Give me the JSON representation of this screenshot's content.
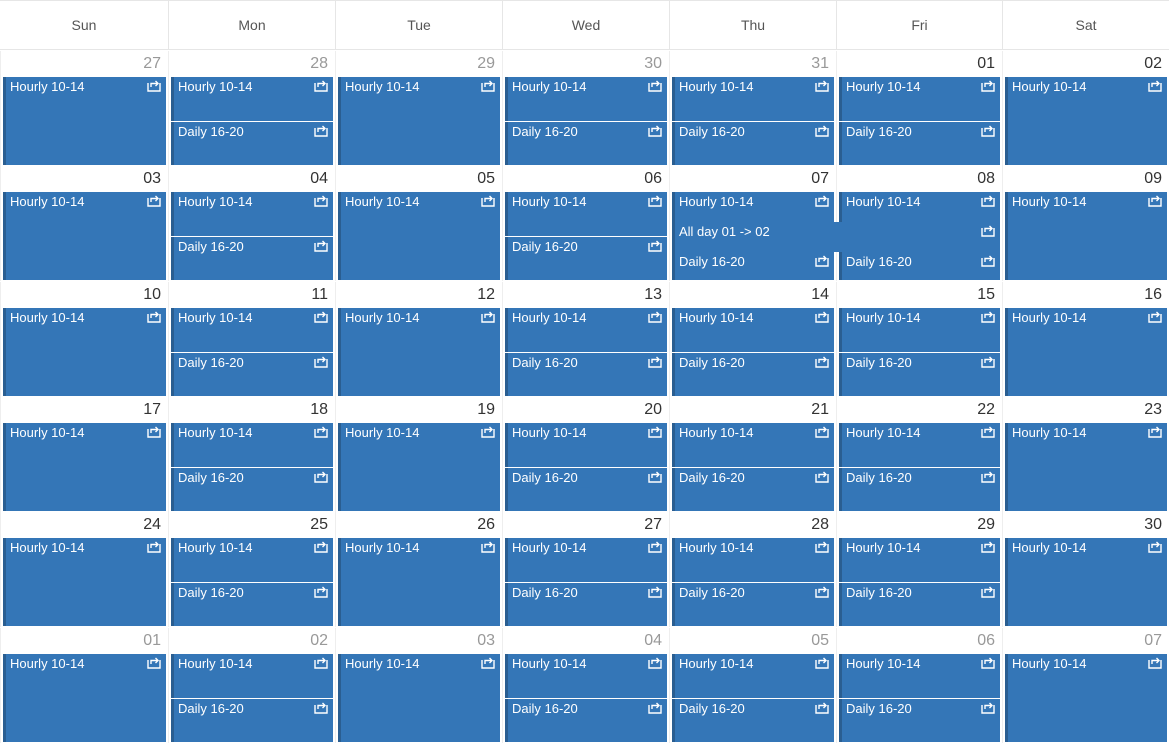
{
  "colors": {
    "event_bg": "#3476b7",
    "event_border": "#2a5e91",
    "event_text": "#ffffff",
    "grid_line": "#e6e6e6"
  },
  "icon": "recurring-event-icon",
  "days_of_week": [
    "Sun",
    "Mon",
    "Tue",
    "Wed",
    "Thu",
    "Fri",
    "Sat"
  ],
  "weeks": [
    {
      "days": [
        {
          "num": "27",
          "other": true
        },
        {
          "num": "28",
          "other": true
        },
        {
          "num": "29",
          "other": true
        },
        {
          "num": "30",
          "other": true
        },
        {
          "num": "31",
          "other": true
        },
        {
          "num": "01",
          "other": false
        },
        {
          "num": "02",
          "other": false
        }
      ],
      "events": [
        {
          "label": "Hourly 10-14",
          "col": 0,
          "span": 1,
          "slot": 0
        },
        {
          "label": "Hourly 10-14",
          "col": 1,
          "span": 1,
          "slot": 0
        },
        {
          "label": "Daily 16-20",
          "col": 1,
          "span": 1,
          "slot": 1
        },
        {
          "label": "Hourly 10-14",
          "col": 2,
          "span": 1,
          "slot": 0
        },
        {
          "label": "Hourly 10-14",
          "col": 3,
          "span": 1,
          "slot": 0
        },
        {
          "label": "Daily 16-20",
          "col": 3,
          "span": 1,
          "slot": 1
        },
        {
          "label": "Hourly 10-14",
          "col": 4,
          "span": 1,
          "slot": 0
        },
        {
          "label": "Daily 16-20",
          "col": 4,
          "span": 1,
          "slot": 1
        },
        {
          "label": "Hourly 10-14",
          "col": 5,
          "span": 1,
          "slot": 0
        },
        {
          "label": "Daily 16-20",
          "col": 5,
          "span": 1,
          "slot": 1
        },
        {
          "label": "Hourly 10-14",
          "col": 6,
          "span": 1,
          "slot": 0
        }
      ]
    },
    {
      "days": [
        {
          "num": "03",
          "other": false
        },
        {
          "num": "04",
          "other": false
        },
        {
          "num": "05",
          "other": false
        },
        {
          "num": "06",
          "other": false
        },
        {
          "num": "07",
          "other": false
        },
        {
          "num": "08",
          "other": false
        },
        {
          "num": "09",
          "other": false
        }
      ],
      "events": [
        {
          "label": "Hourly 10-14",
          "col": 0,
          "span": 1,
          "slot": 0
        },
        {
          "label": "Hourly 10-14",
          "col": 1,
          "span": 1,
          "slot": 0
        },
        {
          "label": "Daily 16-20",
          "col": 1,
          "span": 1,
          "slot": 1
        },
        {
          "label": "Hourly 10-14",
          "col": 2,
          "span": 1,
          "slot": 0
        },
        {
          "label": "Hourly 10-14",
          "col": 3,
          "span": 1,
          "slot": 0
        },
        {
          "label": "Daily 16-20",
          "col": 3,
          "span": 1,
          "slot": 1
        },
        {
          "label": "Hourly 10-14",
          "col": 4,
          "span": 1,
          "slot": 0
        },
        {
          "label": "All day 01 -> 02",
          "col": 4,
          "span": 2,
          "slot": 2
        },
        {
          "label": "Daily 16-20",
          "col": 4,
          "span": 1,
          "slot": 3
        },
        {
          "label": "Hourly 10-14",
          "col": 5,
          "span": 1,
          "slot": 0
        },
        {
          "label": "Daily 16-20",
          "col": 5,
          "span": 1,
          "slot": 3
        },
        {
          "label": "Hourly 10-14",
          "col": 6,
          "span": 1,
          "slot": 0
        }
      ]
    },
    {
      "days": [
        {
          "num": "10",
          "other": false
        },
        {
          "num": "11",
          "other": false
        },
        {
          "num": "12",
          "other": false
        },
        {
          "num": "13",
          "other": false
        },
        {
          "num": "14",
          "other": false
        },
        {
          "num": "15",
          "other": false
        },
        {
          "num": "16",
          "other": false
        }
      ],
      "events": [
        {
          "label": "Hourly 10-14",
          "col": 0,
          "span": 1,
          "slot": 0
        },
        {
          "label": "Hourly 10-14",
          "col": 1,
          "span": 1,
          "slot": 0
        },
        {
          "label": "Daily 16-20",
          "col": 1,
          "span": 1,
          "slot": 1
        },
        {
          "label": "Hourly 10-14",
          "col": 2,
          "span": 1,
          "slot": 0
        },
        {
          "label": "Hourly 10-14",
          "col": 3,
          "span": 1,
          "slot": 0
        },
        {
          "label": "Daily 16-20",
          "col": 3,
          "span": 1,
          "slot": 1
        },
        {
          "label": "Hourly 10-14",
          "col": 4,
          "span": 1,
          "slot": 0
        },
        {
          "label": "Daily 16-20",
          "col": 4,
          "span": 1,
          "slot": 1
        },
        {
          "label": "Hourly 10-14",
          "col": 5,
          "span": 1,
          "slot": 0
        },
        {
          "label": "Daily 16-20",
          "col": 5,
          "span": 1,
          "slot": 1
        },
        {
          "label": "Hourly 10-14",
          "col": 6,
          "span": 1,
          "slot": 0
        }
      ]
    },
    {
      "days": [
        {
          "num": "17",
          "other": false
        },
        {
          "num": "18",
          "other": false
        },
        {
          "num": "19",
          "other": false
        },
        {
          "num": "20",
          "other": false
        },
        {
          "num": "21",
          "other": false
        },
        {
          "num": "22",
          "other": false
        },
        {
          "num": "23",
          "other": false
        }
      ],
      "events": [
        {
          "label": "Hourly 10-14",
          "col": 0,
          "span": 1,
          "slot": 0
        },
        {
          "label": "Hourly 10-14",
          "col": 1,
          "span": 1,
          "slot": 0
        },
        {
          "label": "Daily 16-20",
          "col": 1,
          "span": 1,
          "slot": 1
        },
        {
          "label": "Hourly 10-14",
          "col": 2,
          "span": 1,
          "slot": 0
        },
        {
          "label": "Hourly 10-14",
          "col": 3,
          "span": 1,
          "slot": 0
        },
        {
          "label": "Daily 16-20",
          "col": 3,
          "span": 1,
          "slot": 1
        },
        {
          "label": "Hourly 10-14",
          "col": 4,
          "span": 1,
          "slot": 0
        },
        {
          "label": "Daily 16-20",
          "col": 4,
          "span": 1,
          "slot": 1
        },
        {
          "label": "Hourly 10-14",
          "col": 5,
          "span": 1,
          "slot": 0
        },
        {
          "label": "Daily 16-20",
          "col": 5,
          "span": 1,
          "slot": 1
        },
        {
          "label": "Hourly 10-14",
          "col": 6,
          "span": 1,
          "slot": 0
        }
      ]
    },
    {
      "days": [
        {
          "num": "24",
          "other": false
        },
        {
          "num": "25",
          "other": false
        },
        {
          "num": "26",
          "other": false
        },
        {
          "num": "27",
          "other": false
        },
        {
          "num": "28",
          "other": false
        },
        {
          "num": "29",
          "other": false
        },
        {
          "num": "30",
          "other": false
        }
      ],
      "events": [
        {
          "label": "Hourly 10-14",
          "col": 0,
          "span": 1,
          "slot": 0
        },
        {
          "label": "Hourly 10-14",
          "col": 1,
          "span": 1,
          "slot": 0
        },
        {
          "label": "Daily 16-20",
          "col": 1,
          "span": 1,
          "slot": 1
        },
        {
          "label": "Hourly 10-14",
          "col": 2,
          "span": 1,
          "slot": 0
        },
        {
          "label": "Hourly 10-14",
          "col": 3,
          "span": 1,
          "slot": 0
        },
        {
          "label": "Daily 16-20",
          "col": 3,
          "span": 1,
          "slot": 1
        },
        {
          "label": "Hourly 10-14",
          "col": 4,
          "span": 1,
          "slot": 0
        },
        {
          "label": "Daily 16-20",
          "col": 4,
          "span": 1,
          "slot": 1
        },
        {
          "label": "Hourly 10-14",
          "col": 5,
          "span": 1,
          "slot": 0
        },
        {
          "label": "Daily 16-20",
          "col": 5,
          "span": 1,
          "slot": 1
        },
        {
          "label": "Hourly 10-14",
          "col": 6,
          "span": 1,
          "slot": 0
        }
      ]
    },
    {
      "days": [
        {
          "num": "01",
          "other": true
        },
        {
          "num": "02",
          "other": true
        },
        {
          "num": "03",
          "other": true
        },
        {
          "num": "04",
          "other": true
        },
        {
          "num": "05",
          "other": true
        },
        {
          "num": "06",
          "other": true
        },
        {
          "num": "07",
          "other": true
        }
      ],
      "events": [
        {
          "label": "Hourly 10-14",
          "col": 0,
          "span": 1,
          "slot": 0
        },
        {
          "label": "Hourly 10-14",
          "col": 1,
          "span": 1,
          "slot": 0
        },
        {
          "label": "Daily 16-20",
          "col": 1,
          "span": 1,
          "slot": 1
        },
        {
          "label": "Hourly 10-14",
          "col": 2,
          "span": 1,
          "slot": 0
        },
        {
          "label": "Hourly 10-14",
          "col": 3,
          "span": 1,
          "slot": 0
        },
        {
          "label": "Daily 16-20",
          "col": 3,
          "span": 1,
          "slot": 1
        },
        {
          "label": "Hourly 10-14",
          "col": 4,
          "span": 1,
          "slot": 0
        },
        {
          "label": "Daily 16-20",
          "col": 4,
          "span": 1,
          "slot": 1
        },
        {
          "label": "Hourly 10-14",
          "col": 5,
          "span": 1,
          "slot": 0
        },
        {
          "label": "Daily 16-20",
          "col": 5,
          "span": 1,
          "slot": 1
        },
        {
          "label": "Hourly 10-14",
          "col": 6,
          "span": 1,
          "slot": 0
        }
      ]
    }
  ]
}
